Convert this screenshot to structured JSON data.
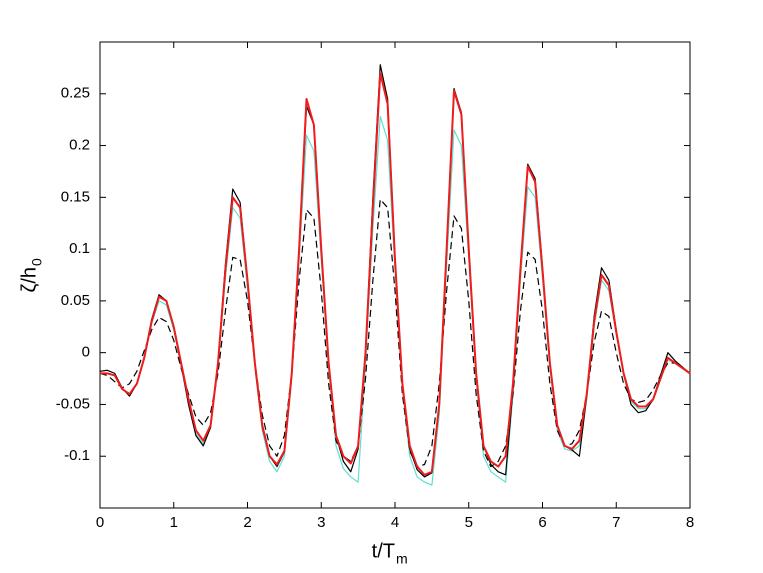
{
  "chart_data": {
    "type": "line",
    "xlabel": {
      "main": "t/T",
      "sub": "m"
    },
    "ylabel": {
      "main": "ζ/h",
      "sub": "0"
    },
    "xlim": [
      0,
      8
    ],
    "xticks": [
      0,
      1,
      2,
      3,
      4,
      5,
      6,
      7,
      8
    ],
    "ylim": [
      -0.15,
      0.3
    ],
    "yticks": [
      -0.1,
      -0.05,
      0,
      0.05,
      0.1,
      0.15,
      0.2,
      0.25
    ],
    "x": [
      0,
      0.1,
      0.2,
      0.3,
      0.4,
      0.5,
      0.6,
      0.7,
      0.8,
      0.9,
      1,
      1.1,
      1.2,
      1.3,
      1.4,
      1.5,
      1.6,
      1.7,
      1.8,
      1.9,
      2,
      2.1,
      2.2,
      2.3,
      2.4,
      2.5,
      2.6,
      2.7,
      2.8,
      2.9,
      3,
      3.1,
      3.2,
      3.3,
      3.4,
      3.5,
      3.6,
      3.7,
      3.8,
      3.9,
      4,
      4.1,
      4.2,
      4.3,
      4.4,
      4.5,
      4.6,
      4.7,
      4.8,
      4.9,
      5,
      5.1,
      5.2,
      5.3,
      5.4,
      5.5,
      5.6,
      5.7,
      5.8,
      5.9,
      6,
      6.1,
      6.2,
      6.3,
      6.4,
      6.5,
      6.6,
      6.7,
      6.8,
      6.9,
      7,
      7.1,
      7.2,
      7.3,
      7.4,
      7.5,
      7.6,
      7.7,
      7.8,
      7.9,
      8
    ],
    "series": [
      {
        "color": "#5fe0d0",
        "linestyle": "solid",
        "values": [
          -0.02,
          -0.02,
          -0.022,
          -0.035,
          -0.04,
          -0.03,
          -0.006,
          0.028,
          0.05,
          0.046,
          0.022,
          -0.012,
          -0.047,
          -0.078,
          -0.088,
          -0.072,
          -0.014,
          0.072,
          0.14,
          0.13,
          0.062,
          -0.014,
          -0.075,
          -0.105,
          -0.115,
          -0.1,
          -0.025,
          0.09,
          0.21,
          0.195,
          0.09,
          -0.015,
          -0.09,
          -0.112,
          -0.12,
          -0.125,
          -0.01,
          0.12,
          0.228,
          0.205,
          0.08,
          -0.035,
          -0.1,
          -0.12,
          -0.125,
          -0.128,
          -0.06,
          0.085,
          0.215,
          0.2,
          0.09,
          -0.025,
          -0.1,
          -0.115,
          -0.12,
          -0.125,
          -0.04,
          0.07,
          0.16,
          0.15,
          0.072,
          -0.015,
          -0.075,
          -0.093,
          -0.095,
          -0.09,
          -0.045,
          0.025,
          0.07,
          0.06,
          0.018,
          -0.022,
          -0.047,
          -0.054,
          -0.054,
          -0.046,
          -0.026,
          -0.007,
          -0.01,
          -0.015,
          -0.02
        ]
      },
      {
        "color": "#000000",
        "linestyle": "solid",
        "values": [
          -0.018,
          -0.017,
          -0.02,
          -0.034,
          -0.042,
          -0.03,
          -0.004,
          0.032,
          0.056,
          0.05,
          0.024,
          -0.012,
          -0.05,
          -0.08,
          -0.09,
          -0.072,
          -0.01,
          0.085,
          0.158,
          0.145,
          0.07,
          -0.012,
          -0.072,
          -0.1,
          -0.11,
          -0.096,
          -0.02,
          0.1,
          0.238,
          0.22,
          0.1,
          -0.01,
          -0.08,
          -0.105,
          -0.115,
          -0.093,
          0.0,
          0.15,
          0.278,
          0.245,
          0.09,
          -0.03,
          -0.093,
          -0.113,
          -0.12,
          -0.116,
          -0.05,
          0.1,
          0.255,
          0.232,
          0.1,
          -0.02,
          -0.09,
          -0.108,
          -0.115,
          -0.118,
          -0.035,
          0.08,
          0.182,
          0.168,
          0.082,
          -0.01,
          -0.07,
          -0.09,
          -0.094,
          -0.1,
          -0.042,
          0.035,
          0.082,
          0.07,
          0.022,
          -0.02,
          -0.05,
          -0.058,
          -0.056,
          -0.045,
          -0.022,
          0.0,
          -0.008,
          -0.014,
          -0.02
        ]
      },
      {
        "color": "#000000",
        "linestyle": "dashed",
        "values": [
          -0.02,
          -0.022,
          -0.028,
          -0.034,
          -0.03,
          -0.018,
          0.002,
          0.022,
          0.034,
          0.03,
          0.012,
          -0.015,
          -0.04,
          -0.062,
          -0.07,
          -0.058,
          -0.02,
          0.04,
          0.092,
          0.09,
          0.05,
          -0.01,
          -0.06,
          -0.09,
          -0.1,
          -0.08,
          -0.02,
          0.07,
          0.138,
          0.13,
          0.06,
          -0.03,
          -0.085,
          -0.1,
          -0.105,
          -0.09,
          -0.025,
          0.07,
          0.148,
          0.14,
          0.06,
          -0.04,
          -0.095,
          -0.11,
          -0.108,
          -0.09,
          -0.03,
          0.06,
          0.132,
          0.12,
          0.05,
          -0.04,
          -0.095,
          -0.11,
          -0.105,
          -0.09,
          -0.04,
          0.04,
          0.097,
          0.09,
          0.04,
          -0.03,
          -0.075,
          -0.09,
          -0.088,
          -0.075,
          -0.04,
          0.01,
          0.04,
          0.035,
          0.0,
          -0.03,
          -0.045,
          -0.048,
          -0.046,
          -0.036,
          -0.022,
          -0.01,
          -0.01,
          -0.015,
          -0.02
        ]
      },
      {
        "color": "#ee1c1c",
        "linestyle": "solid",
        "values": [
          -0.02,
          -0.02,
          -0.022,
          -0.035,
          -0.04,
          -0.03,
          -0.005,
          0.03,
          0.054,
          0.05,
          0.025,
          -0.01,
          -0.045,
          -0.075,
          -0.085,
          -0.07,
          -0.01,
          0.08,
          0.15,
          0.14,
          0.07,
          -0.01,
          -0.07,
          -0.1,
          -0.108,
          -0.095,
          -0.02,
          0.1,
          0.245,
          0.22,
          0.1,
          -0.01,
          -0.08,
          -0.1,
          -0.107,
          -0.09,
          0.0,
          0.14,
          0.27,
          0.24,
          0.09,
          -0.03,
          -0.09,
          -0.11,
          -0.118,
          -0.115,
          -0.05,
          0.1,
          0.253,
          0.23,
          0.1,
          -0.02,
          -0.09,
          -0.105,
          -0.11,
          -0.1,
          -0.03,
          0.08,
          0.18,
          0.165,
          0.08,
          -0.01,
          -0.07,
          -0.09,
          -0.093,
          -0.085,
          -0.04,
          0.03,
          0.075,
          0.065,
          0.02,
          -0.02,
          -0.045,
          -0.052,
          -0.052,
          -0.045,
          -0.025,
          -0.005,
          -0.01,
          -0.015,
          -0.02
        ]
      }
    ]
  }
}
